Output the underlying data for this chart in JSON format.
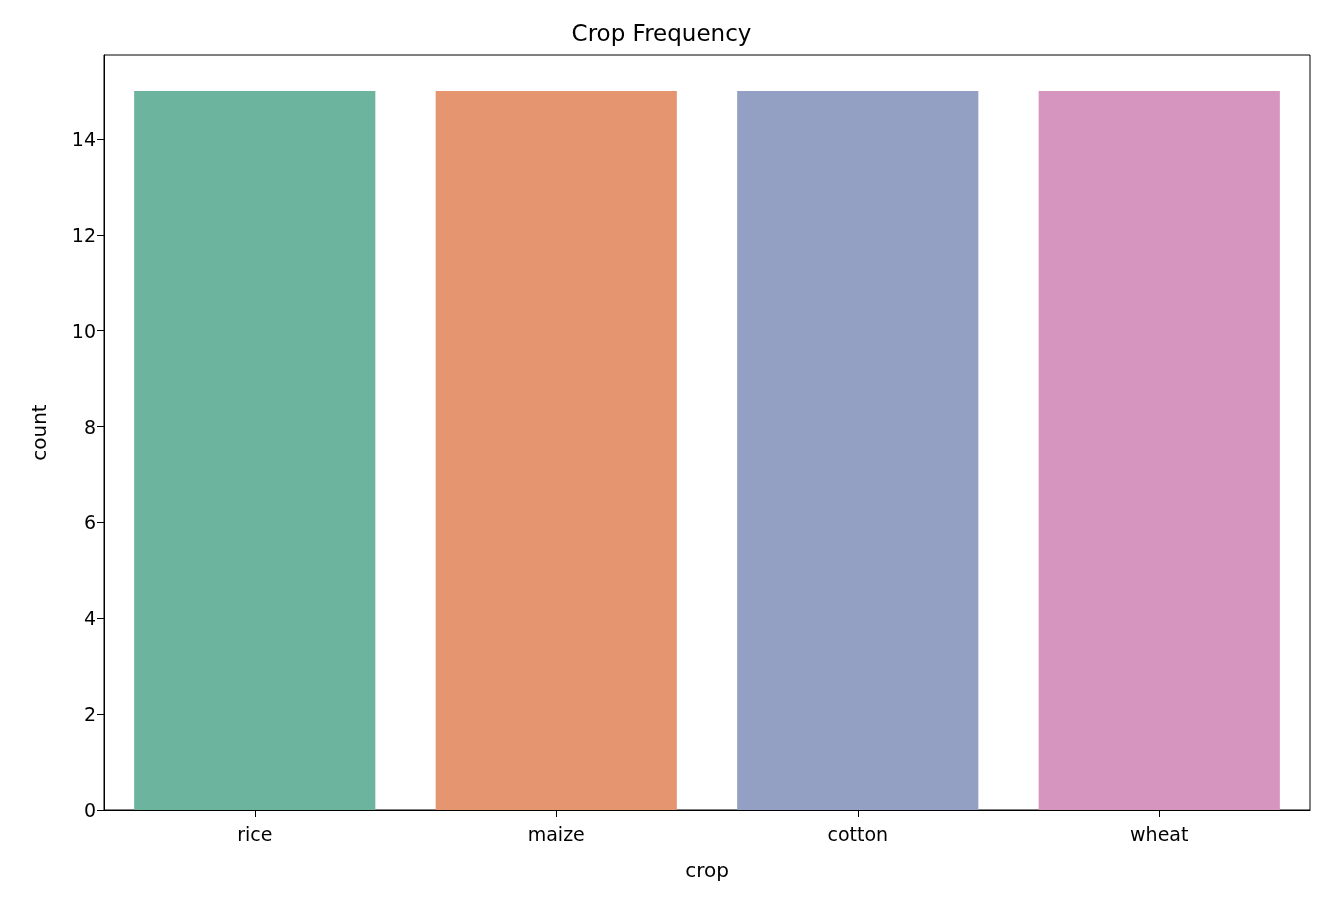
{
  "chart_data": {
    "type": "bar",
    "title": "Crop Frequency",
    "xlabel": "crop",
    "ylabel": "count",
    "categories": [
      "rice",
      "maize",
      "cotton",
      "wheat"
    ],
    "values": [
      15,
      15,
      15,
      15
    ],
    "colors": [
      "#6db49f",
      "#e5956f",
      "#93a0c4",
      "#d695be"
    ],
    "ylim": [
      0,
      15.75
    ],
    "yticks": [
      0,
      2,
      4,
      6,
      8,
      10,
      12,
      14
    ],
    "grid": false
  }
}
